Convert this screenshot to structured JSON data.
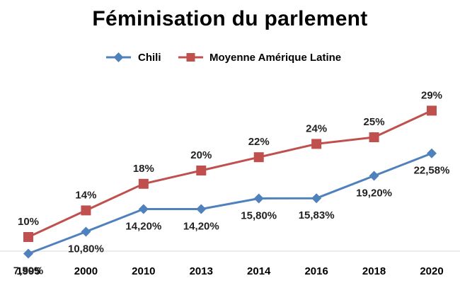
{
  "chart_data": {
    "type": "line",
    "title": "Féminisation du parlement",
    "xlabel": "",
    "ylabel": "",
    "categories": [
      "1995",
      "2000",
      "2010",
      "2013",
      "2014",
      "2016",
      "2018",
      "2020"
    ],
    "legend_position": "top",
    "grid": false,
    "series": [
      {
        "name": "Chili",
        "color": "#4F81BD",
        "marker": "diamond",
        "values": [
          7.5,
          10.8,
          14.2,
          14.2,
          15.8,
          15.83,
          19.2,
          22.58
        ],
        "labels": [
          "7,50%",
          "10,80%",
          "14,20%",
          "14,20%",
          "15,80%",
          "15,83%",
          "19,20%",
          "22,58%"
        ]
      },
      {
        "name": "Moyenne Amérique Latine",
        "color": "#C0504D",
        "marker": "square",
        "values": [
          10,
          14,
          18,
          20,
          22,
          24,
          25,
          29
        ],
        "labels": [
          "10%",
          "14%",
          "18%",
          "20%",
          "22%",
          "24%",
          "25%",
          "29%"
        ]
      }
    ]
  }
}
